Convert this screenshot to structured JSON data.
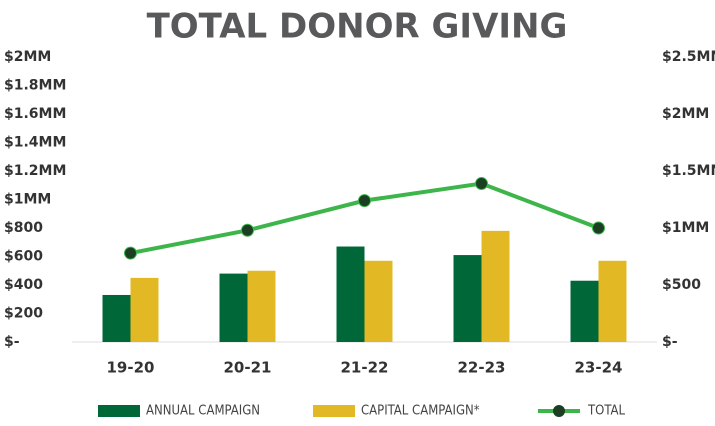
{
  "chart_data": {
    "type": "bar",
    "title": "TOTAL DONOR GIVING",
    "categories": [
      "19-20",
      "20-21",
      "21-22",
      "22-23",
      "23-24"
    ],
    "series": [
      {
        "name": "ANNUAL CAMPAIGN",
        "color": "#006838",
        "values": [
          330,
          480,
          670,
          610,
          430
        ]
      },
      {
        "name": "CAPITAL CAMPAIGN*",
        "color": "#e2b824",
        "values": [
          450,
          500,
          570,
          780,
          570
        ]
      },
      {
        "name": "TOTAL",
        "color": "#3db54a",
        "type": "line",
        "axis": "y2",
        "marker_color": "#1b3f22",
        "values": [
          780,
          980,
          1240,
          1390,
          1000
        ]
      }
    ],
    "ylim": [
      0,
      2000
    ],
    "yticks": [
      {
        "value": 0,
        "label": "$-"
      },
      {
        "value": 200,
        "label": "$200"
      },
      {
        "value": 400,
        "label": "$400"
      },
      {
        "value": 600,
        "label": "$600"
      },
      {
        "value": 800,
        "label": "$800"
      },
      {
        "value": 1000,
        "label": "$1MM"
      },
      {
        "value": 1200,
        "label": "$1.2MM"
      },
      {
        "value": 1400,
        "label": "$1.4MM"
      },
      {
        "value": 1600,
        "label": "$1.6MM"
      },
      {
        "value": 1800,
        "label": "$1.8MM"
      },
      {
        "value": 2000,
        "label": "$2MM"
      }
    ],
    "y2lim": [
      0,
      2500
    ],
    "y2ticks": [
      {
        "value": 0,
        "label": "$-"
      },
      {
        "value": 500,
        "label": "$500"
      },
      {
        "value": 1000,
        "label": "$1MM"
      },
      {
        "value": 1500,
        "label": "$1.5MM"
      },
      {
        "value": 2000,
        "label": "$2MM"
      },
      {
        "value": 2500,
        "label": "$2.5MM"
      }
    ],
    "grid": false,
    "legend": "bottom"
  }
}
